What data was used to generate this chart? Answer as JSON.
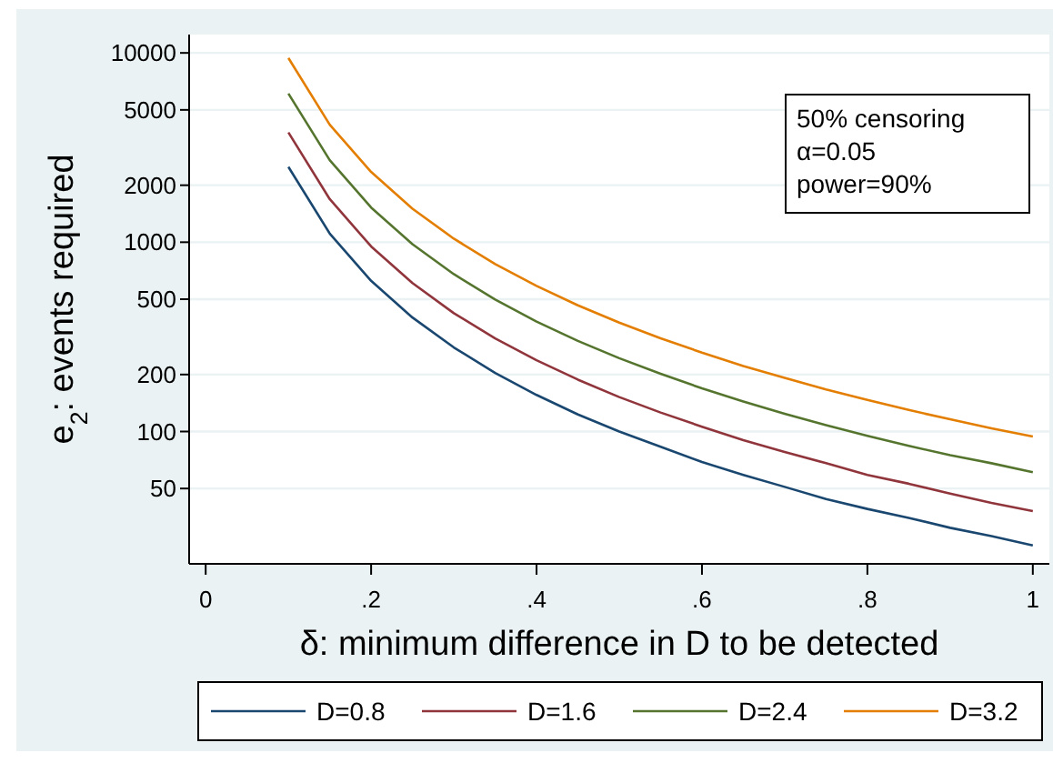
{
  "chart_data": {
    "type": "line",
    "xlabel": "δ: minimum difference in D to be detected",
    "ylabel": "e$_{2}$: events required",
    "annotations": [
      "50% censoring",
      "α=0.05",
      "power=90%"
    ],
    "x": [
      0.1,
      0.15,
      0.2,
      0.25,
      0.3,
      0.35,
      0.4,
      0.45,
      0.5,
      0.55,
      0.6,
      0.65,
      0.7,
      0.75,
      0.8,
      0.85,
      0.9,
      0.95,
      1
    ],
    "series": [
      {
        "name": "D=0.8",
        "color": "#1a476f",
        "values": [
          2500,
          1111,
          625,
          400,
          278,
          204,
          156,
          123,
          100,
          83,
          69,
          59,
          51,
          44,
          39,
          35,
          31,
          28,
          25
        ]
      },
      {
        "name": "D=1.6",
        "color": "#90353b",
        "values": [
          3800,
          1689,
          950,
          608,
          422,
          310,
          238,
          188,
          152,
          126,
          106,
          90,
          78,
          68,
          59,
          53,
          47,
          42,
          38
        ]
      },
      {
        "name": "D=2.4",
        "color": "#55752f",
        "values": [
          6100,
          2711,
          1525,
          976,
          678,
          498,
          381,
          301,
          244,
          202,
          169,
          144,
          124,
          108,
          95,
          84,
          75,
          68,
          61
        ]
      },
      {
        "name": "D=3.2",
        "color": "#e37e00",
        "values": [
          9400,
          4178,
          2350,
          1504,
          1044,
          767,
          588,
          464,
          376,
          311,
          261,
          222,
          192,
          167,
          147,
          130,
          116,
          104,
          94
        ]
      }
    ],
    "log": "y",
    "xlim": [
      -0.02,
      1.02
    ],
    "ylim": [
      20,
      12500
    ],
    "xticks": [
      0,
      {
        "value": 0.2,
        "label": ".2"
      },
      {
        "value": 0.4,
        "label": ".4"
      },
      {
        "value": 0.6,
        "label": ".6"
      },
      {
        "value": 0.8,
        "label": ".8"
      },
      1
    ],
    "yticks": [
      50,
      100,
      200,
      500,
      1000,
      2000,
      5000,
      10000
    ],
    "grid": "y",
    "legend": "bottom",
    "marker": "none",
    "line_style": "solid"
  }
}
